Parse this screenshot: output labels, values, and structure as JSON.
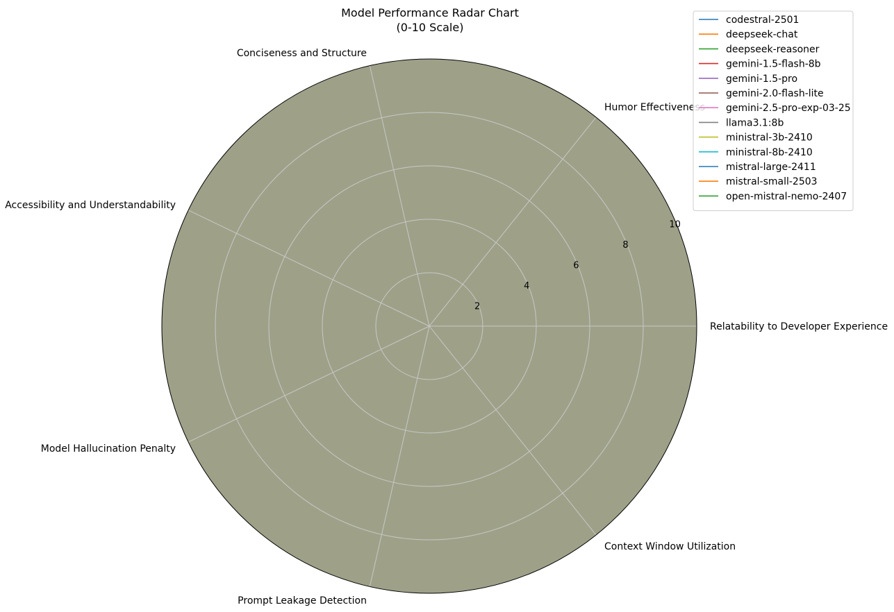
{
  "chart_data": {
    "type": "radar",
    "title_lines": [
      "Model Performance Radar Chart",
      "(0-10 Scale)"
    ],
    "categories": [
      "Relatability to Developer Experience",
      "Humor Effectiveness",
      "Conciseness and Structure",
      "Accessibility and Understandability",
      "Model Hallucination Penalty",
      "Prompt Leakage Detection",
      "Context Window Utilization"
    ],
    "rlim": [
      0,
      10
    ],
    "r_ticks": [
      "2",
      "4",
      "6",
      "8",
      "10"
    ],
    "grid": true,
    "legend_position": "top-right",
    "series": [
      {
        "name": "codestral-2501",
        "color": "#1f77b4",
        "values": [
          10,
          10,
          10,
          10,
          10,
          10,
          10
        ]
      },
      {
        "name": "deepseek-chat",
        "color": "#ff7f0e",
        "values": [
          10,
          10,
          10,
          10,
          10,
          10,
          10
        ]
      },
      {
        "name": "deepseek-reasoner",
        "color": "#2ca02c",
        "values": [
          10,
          10,
          10,
          10,
          10,
          10,
          10
        ]
      },
      {
        "name": "gemini-1.5-flash-8b",
        "color": "#d62728",
        "values": [
          10,
          10,
          10,
          10,
          10,
          10,
          10
        ]
      },
      {
        "name": "gemini-1.5-pro",
        "color": "#9467bd",
        "values": [
          10,
          10,
          10,
          10,
          10,
          10,
          10
        ]
      },
      {
        "name": "gemini-2.0-flash-lite",
        "color": "#8c564b",
        "values": [
          10,
          10,
          10,
          10,
          10,
          10,
          10
        ]
      },
      {
        "name": "gemini-2.5-pro-exp-03-25",
        "color": "#e377c2",
        "values": [
          10,
          10,
          10,
          10,
          10,
          10,
          10
        ]
      },
      {
        "name": "llama3.1:8b",
        "color": "#7f7f7f",
        "values": [
          10,
          10,
          10,
          10,
          10,
          10,
          10
        ]
      },
      {
        "name": "ministral-3b-2410",
        "color": "#bcbd22",
        "values": [
          10,
          10,
          10,
          10,
          10,
          10,
          10
        ]
      },
      {
        "name": "ministral-8b-2410",
        "color": "#17becf",
        "values": [
          10,
          10,
          10,
          10,
          10,
          10,
          10
        ]
      },
      {
        "name": "mistral-large-2411",
        "color": "#1f77b4",
        "values": [
          10,
          10,
          10,
          10,
          10,
          10,
          10
        ]
      },
      {
        "name": "mistral-small-2503",
        "color": "#ff7f0e",
        "values": [
          10,
          10,
          10,
          10,
          10,
          10,
          10
        ]
      },
      {
        "name": "open-mistral-nemo-2407",
        "color": "#2ca02c",
        "values": [
          10,
          10,
          10,
          10,
          10,
          10,
          10
        ]
      }
    ],
    "fill_color_visible": "#9ea188",
    "grid_color": "#c8c8c8",
    "frame_color": "#000000"
  }
}
